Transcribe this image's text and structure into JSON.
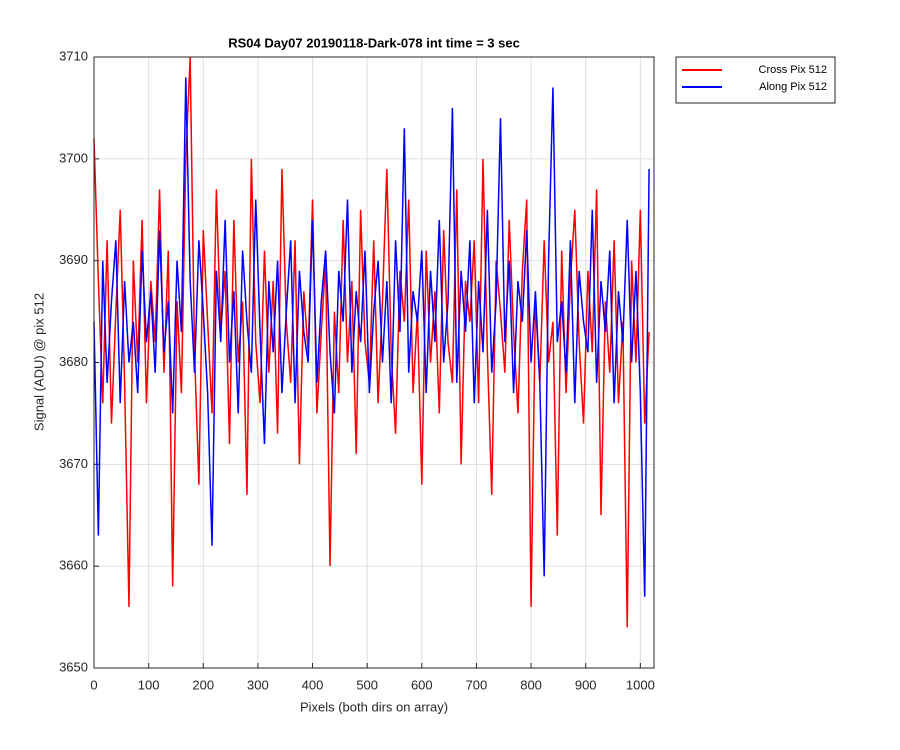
{
  "chart_data": {
    "type": "line",
    "title": "RS04 Day07 20190118-Dark-078 int time = 3 sec",
    "x_label": "Pixels (both dirs on array)",
    "y_label": "Signal (ADU) @ pix 512",
    "x": [
      0,
      8,
      16,
      24,
      32,
      40,
      48,
      56,
      64,
      72,
      80,
      88,
      96,
      104,
      112,
      120,
      128,
      136,
      144,
      152,
      160,
      168,
      176,
      184,
      192,
      200,
      208,
      216,
      224,
      232,
      240,
      248,
      256,
      264,
      272,
      280,
      288,
      296,
      304,
      312,
      320,
      328,
      336,
      344,
      352,
      360,
      368,
      376,
      384,
      392,
      400,
      408,
      416,
      424,
      432,
      440,
      448,
      456,
      464,
      472,
      480,
      488,
      496,
      504,
      512,
      520,
      528,
      536,
      544,
      552,
      560,
      568,
      576,
      584,
      592,
      600,
      608,
      616,
      624,
      632,
      640,
      648,
      656,
      664,
      672,
      680,
      688,
      696,
      704,
      712,
      720,
      728,
      736,
      744,
      752,
      760,
      768,
      776,
      784,
      792,
      800,
      808,
      816,
      824,
      832,
      840,
      848,
      856,
      864,
      872,
      880,
      888,
      896,
      904,
      912,
      920,
      928,
      936,
      944,
      952,
      960,
      968,
      976,
      984,
      992,
      1000,
      1008,
      1016
    ],
    "series": [
      {
        "name": "Cross Pix 512",
        "color": "#ff0000",
        "values": [
          3702,
          3688,
          3676,
          3692,
          3674,
          3685,
          3695,
          3678,
          3656,
          3690,
          3680,
          3694,
          3676,
          3688,
          3682,
          3697,
          3679,
          3691,
          3658,
          3686,
          3677,
          3700,
          3710,
          3681,
          3668,
          3693,
          3684,
          3675,
          3697,
          3683,
          3689,
          3672,
          3694,
          3680,
          3686,
          3667,
          3700,
          3682,
          3676,
          3691,
          3679,
          3688,
          3673,
          3699,
          3684,
          3678,
          3692,
          3670,
          3687,
          3681,
          3696,
          3675,
          3683,
          3690,
          3660,
          3685,
          3677,
          3694,
          3680,
          3688,
          3671,
          3695,
          3682,
          3678,
          3692,
          3676,
          3686,
          3699,
          3681,
          3673,
          3689,
          3684,
          3696,
          3677,
          3685,
          3668,
          3691,
          3680,
          3687,
          3675,
          3693,
          3682,
          3678,
          3697,
          3670,
          3688,
          3684,
          3692,
          3676,
          3700,
          3681,
          3667,
          3690,
          3685,
          3679,
          3694,
          3683,
          3675,
          3689,
          3696,
          3656,
          3686,
          3678,
          3692,
          3680,
          3684,
          3663,
          3691,
          3677,
          3688,
          3695,
          3682,
          3674,
          3689,
          3681,
          3697,
          3665,
          3686,
          3679,
          3692,
          3676,
          3684,
          3654,
          3690,
          3680,
          3695,
          3674,
          3683
        ]
      },
      {
        "name": "Along Pix 512",
        "color": "#0000ff",
        "values": [
          3684,
          3663,
          3690,
          3678,
          3686,
          3692,
          3676,
          3688,
          3680,
          3684,
          3677,
          3691,
          3682,
          3687,
          3679,
          3693,
          3681,
          3686,
          3675,
          3690,
          3683,
          3708,
          3688,
          3679,
          3692,
          3685,
          3677,
          3662,
          3689,
          3682,
          3694,
          3680,
          3687,
          3675,
          3691,
          3684,
          3679,
          3696,
          3683,
          3672,
          3688,
          3681,
          3690,
          3677,
          3685,
          3692,
          3676,
          3689,
          3683,
          3680,
          3694,
          3678,
          3686,
          3691,
          3681,
          3675,
          3689,
          3684,
          3696,
          3679,
          3687,
          3682,
          3691,
          3677,
          3685,
          3690,
          3680,
          3688,
          3676,
          3692,
          3683,
          3703,
          3679,
          3687,
          3684,
          3691,
          3677,
          3689,
          3682,
          3694,
          3680,
          3686,
          3705,
          3678,
          3689,
          3683,
          3692,
          3676,
          3688,
          3681,
          3695,
          3679,
          3686,
          3704,
          3682,
          3690,
          3677,
          3688,
          3684,
          3693,
          3680,
          3687,
          3678,
          3659,
          3690,
          3707,
          3682,
          3686,
          3679,
          3692,
          3676,
          3689,
          3684,
          3681,
          3695,
          3678,
          3688,
          3683,
          3691,
          3676,
          3687,
          3682,
          3694,
          3680,
          3689,
          3677,
          3657,
          3699
        ]
      }
    ],
    "xlim": [
      0,
      1025
    ],
    "xticks": [
      0,
      100,
      200,
      300,
      400,
      500,
      600,
      700,
      800,
      900,
      1000
    ],
    "ylim": [
      3650,
      3710
    ],
    "yticks": [
      3650,
      3660,
      3670,
      3680,
      3690,
      3700,
      3710
    ],
    "grid": true,
    "legend": "outside-top-right"
  }
}
